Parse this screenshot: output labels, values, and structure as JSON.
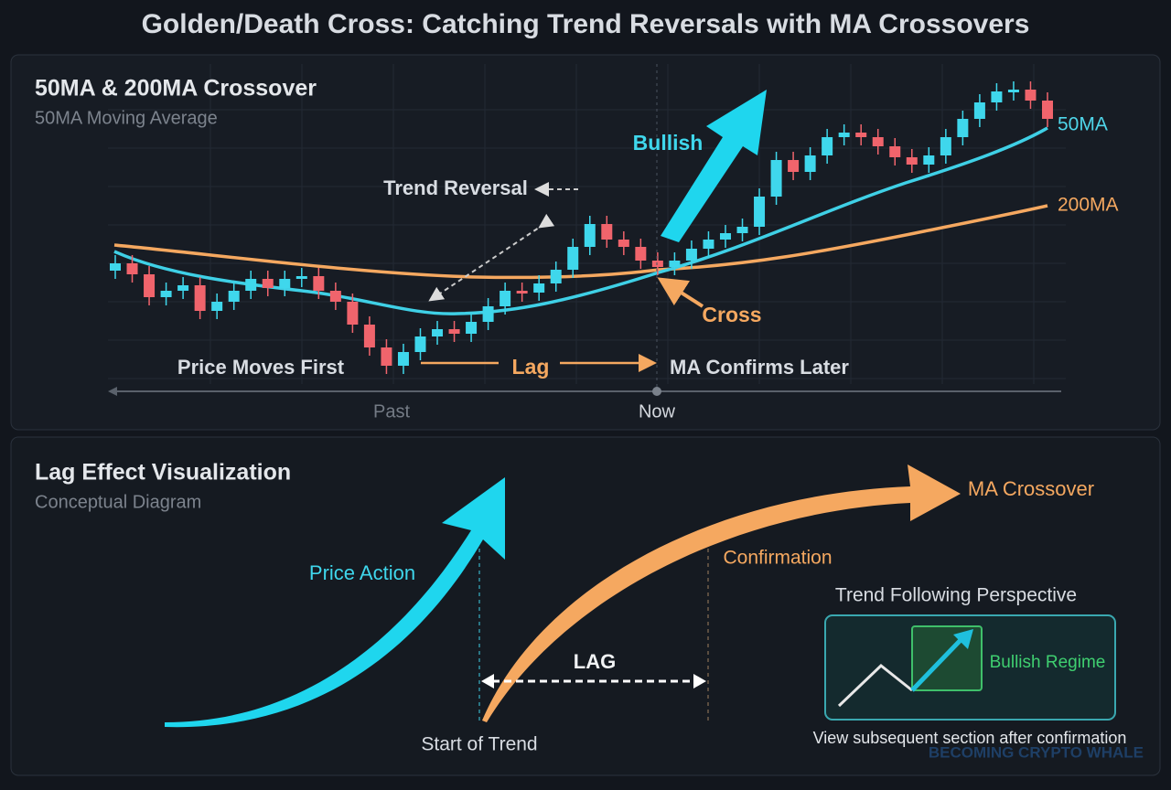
{
  "header": {
    "title": "Golden/Death Cross: Catching Trend Reversals with MA Crossovers"
  },
  "top_panel": {
    "title": "50MA & 200MA Crossover",
    "subtitle": "50MA Moving Average",
    "labels": {
      "trend_reversal": "Trend Reversal",
      "bullish": "Bullish",
      "ma50": "50MA",
      "ma200": "200MA",
      "cross": "Cross",
      "price_moves_first": "Price Moves First",
      "lag": "Lag",
      "ma_confirms_later": "MA Confirms Later",
      "past": "Past",
      "now": "Now"
    }
  },
  "bottom_panel": {
    "title": "Lag Effect Visualization",
    "subtitle": "Conceptual Diagram",
    "labels": {
      "price_action": "Price Action",
      "confirmation": "Confirmation",
      "ma_crossover": "MA Crossover",
      "lag": "LAG",
      "start_of_trend": "Start of Trend"
    },
    "inset": {
      "title": "Trend Following Perspective",
      "badge": "Bullish Regime",
      "caption": "View subsequent section after confirmation"
    }
  },
  "watermark": "BECOMING CRYPTO WHALE"
}
